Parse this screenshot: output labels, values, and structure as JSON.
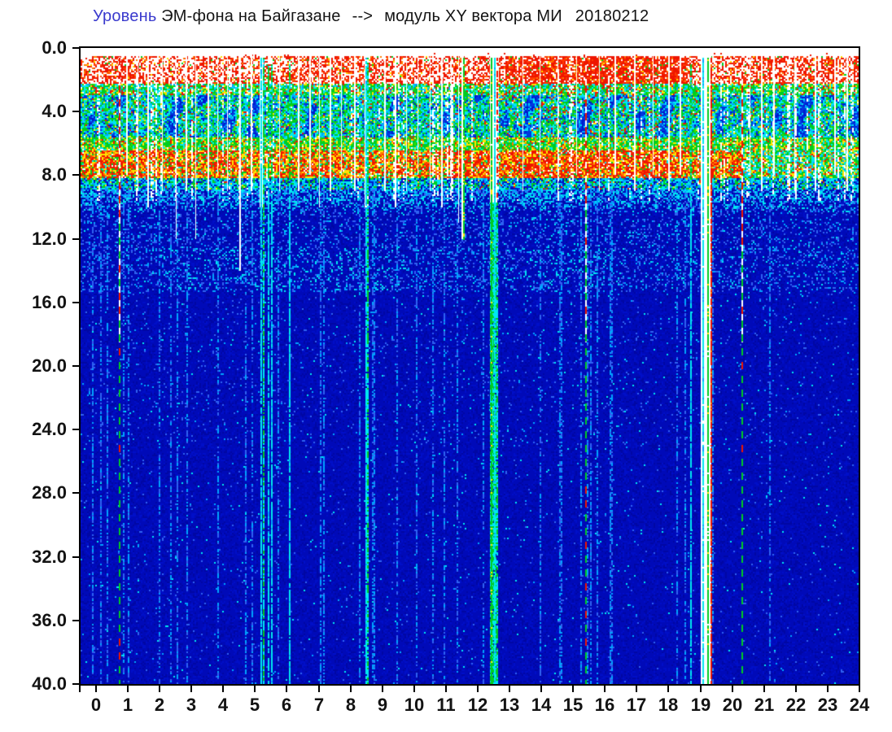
{
  "window": {
    "background": "#ffffff"
  },
  "title": {
    "prefix": "Уровень",
    "prefix_color": "#3a3acd",
    "main": "ЭМ-фона на Байгазане",
    "arrow": "--&gt;",
    "arrow_text": "-->",
    "module": "модуль XY вектора МИ",
    "date": "20180212",
    "color": "#141414"
  },
  "chart_data": {
    "type": "heatmap",
    "subtype": "spectrogram",
    "title": "Уровень ЭМ-фона на Байгазане --> модуль XY вектора МИ 20180212",
    "xlabel": "",
    "ylabel": "",
    "x_range": [
      0,
      24
    ],
    "y_range": [
      0,
      40
    ],
    "y_axis_inverted": true,
    "grid": false,
    "legend": false,
    "x_ticks": [
      "0",
      "1",
      "2",
      "3",
      "4",
      "5",
      "6",
      "7",
      "8",
      "9",
      "10",
      "11",
      "12",
      "13",
      "14",
      "15",
      "16",
      "17",
      "18",
      "19",
      "20",
      "21",
      "22",
      "23",
      "24"
    ],
    "y_ticks": [
      "0.0",
      "4.0",
      "8.0",
      "12.0",
      "16.0",
      "20.0",
      "24.0",
      "28.0",
      "32.0",
      "36.0",
      "40.0"
    ],
    "seed": 20180212,
    "day_interval": [
      12.85,
      18.6
    ],
    "palette": {
      "white": "#ffffff",
      "red": "#ee1500",
      "red2": "#ff3a00",
      "orange": "#ff7e00",
      "yellow": "#ffe400",
      "green": "#00cc22",
      "green2": "#35e000",
      "cyan": "#00e8f0",
      "skyblue": "#00a4ff",
      "ltblue": "#2f62f2",
      "midblue": "#0038e0",
      "blue": "#0018cc",
      "deepblue": "#000ab8",
      "deep2": "#0007a4",
      "deep3": "#000fc8"
    },
    "bands": [
      {
        "id": "blank_top",
        "f": [
          0,
          0.55
        ]
      },
      {
        "id": "red_speckle",
        "f": [
          0.55,
          2.25
        ],
        "density_base": 0.55,
        "density_day": 0.85,
        "density_dawn": 0.45,
        "density_late": 0.6,
        "w": [
          [
            "red",
            0.62
          ],
          [
            "red2",
            0.22
          ],
          [
            "orange",
            0.09
          ],
          [
            "yellow",
            0.04
          ],
          [
            "green",
            0.03
          ]
        ]
      },
      {
        "id": "transition_upper",
        "f": [
          2.25,
          3.0
        ],
        "w": [
          [
            "green",
            0.34
          ],
          [
            "cyan",
            0.22
          ],
          [
            "green2",
            0.08
          ],
          [
            "yellow",
            0.12
          ],
          [
            "red",
            0.09
          ],
          [
            "skyblue",
            0.08
          ],
          [
            "white",
            0.07
          ]
        ]
      },
      {
        "id": "mid_green_cyan",
        "f": [
          3.0,
          5.6
        ],
        "w": [
          [
            "cyan",
            0.32
          ],
          [
            "green",
            0.26
          ],
          [
            "green2",
            0.06
          ],
          [
            "skyblue",
            0.12
          ],
          [
            "midblue",
            0.09
          ],
          [
            "blue",
            0.06
          ],
          [
            "yellow",
            0.04
          ],
          [
            "red",
            0.03
          ],
          [
            "white",
            0.02
          ]
        ],
        "patch_w": [
          [
            "midblue",
            0.38
          ],
          [
            "blue",
            0.28
          ],
          [
            "skyblue",
            0.2
          ],
          [
            "cyan",
            0.14
          ]
        ]
      },
      {
        "id": "green_band",
        "f": [
          5.6,
          6.45
        ],
        "w": [
          [
            "green",
            0.4
          ],
          [
            "green2",
            0.1
          ],
          [
            "cyan",
            0.16
          ],
          [
            "yellow",
            0.18
          ],
          [
            "red",
            0.09
          ],
          [
            "orange",
            0.04
          ],
          [
            "white",
            0.03
          ]
        ]
      },
      {
        "id": "yellow_red_band",
        "f": [
          6.45,
          8.15
        ],
        "w": [
          [
            "red",
            0.34
          ],
          [
            "red2",
            0.08
          ],
          [
            "yellow",
            0.24
          ],
          [
            "orange",
            0.12
          ],
          [
            "green",
            0.13
          ],
          [
            "cyan",
            0.05
          ],
          [
            "white",
            0.04
          ]
        ],
        "w_day": [
          [
            "red",
            0.44
          ],
          [
            "red2",
            0.12
          ],
          [
            "yellow",
            0.19
          ],
          [
            "orange",
            0.1
          ],
          [
            "white",
            0.06
          ],
          [
            "green",
            0.06
          ],
          [
            "cyan",
            0.03
          ]
        ],
        "w_weak": [
          [
            "cyan",
            0.28
          ],
          [
            "green",
            0.24
          ],
          [
            "green2",
            0.06
          ],
          [
            "yellow",
            0.17
          ],
          [
            "red",
            0.11
          ],
          [
            "skyblue",
            0.07
          ],
          [
            "orange",
            0.03
          ],
          [
            "white",
            0.04
          ]
        ]
      },
      {
        "id": "transition_lower",
        "f": [
          8.15,
          8.9
        ],
        "w": [
          [
            "cyan",
            0.3
          ],
          [
            "green",
            0.18
          ],
          [
            "skyblue",
            0.17
          ],
          [
            "blue",
            0.14
          ],
          [
            "deepblue",
            0.13
          ],
          [
            "midblue",
            0.04
          ],
          [
            "yellow",
            0.02
          ],
          [
            "red",
            0.02
          ]
        ]
      },
      {
        "id": "cyan_fade",
        "f": [
          8.9,
          10.3
        ]
      },
      {
        "id": "blue_specks",
        "f": [
          10.3,
          12.6
        ],
        "p_sky": 0.05,
        "p_cyan": 0.015,
        "p_lt": 0.1
      },
      {
        "id": "faint_cyan_band",
        "f": [
          12.6,
          15.3
        ],
        "p_cyan_active": 0.05,
        "p_cyan_idle": 0.015,
        "active_t": [
          [
            2,
            9.7
          ],
          [
            12.8,
            16.6
          ]
        ],
        "p_sky": 0.07,
        "p_lt": 0.1
      },
      {
        "id": "deep_blue",
        "f": [
          15.3,
          40
        ],
        "p_sky_upper": 0.03,
        "p_sky_lower": 0.012,
        "p_cyan": 0.004
      }
    ],
    "minor_gaps": [
      [
        0.95,
        8
      ],
      [
        1.3,
        9
      ],
      [
        1.62,
        10
      ],
      [
        2.08,
        9
      ],
      [
        2.5,
        12
      ],
      [
        2.82,
        9
      ],
      [
        3.12,
        12
      ],
      [
        3.5,
        9
      ],
      [
        3.82,
        8
      ],
      [
        4.12,
        9
      ],
      [
        4.5,
        14
      ],
      [
        4.85,
        9
      ],
      [
        5.75,
        9
      ],
      [
        6.35,
        9
      ],
      [
        6.7,
        8
      ],
      [
        7.0,
        10
      ],
      [
        7.35,
        9
      ],
      [
        7.7,
        8
      ],
      [
        8.1,
        9
      ],
      [
        9.05,
        9
      ],
      [
        9.4,
        10
      ],
      [
        9.75,
        9
      ],
      [
        10.1,
        8
      ],
      [
        10.5,
        9
      ],
      [
        10.85,
        10
      ],
      [
        11.15,
        9
      ],
      [
        11.38,
        11
      ],
      [
        13.4,
        9
      ],
      [
        13.95,
        8
      ],
      [
        14.5,
        9
      ],
      [
        15.1,
        8
      ],
      [
        15.8,
        9
      ],
      [
        16.3,
        8
      ],
      [
        16.9,
        9
      ],
      [
        17.5,
        8
      ],
      [
        18.0,
        9
      ],
      [
        18.35,
        8
      ],
      [
        20.55,
        8
      ],
      [
        20.9,
        9
      ],
      [
        21.3,
        8
      ],
      [
        21.95,
        9
      ],
      [
        22.6,
        9
      ],
      [
        23.2,
        8
      ],
      [
        23.6,
        9
      ]
    ],
    "features": [
      {
        "type": "gap",
        "t0": 5.14,
        "t1": 5.27,
        "f1": 10,
        "lines": [
          {
            "t": 5.18,
            "color": "cyan"
          },
          {
            "t": 5.24,
            "color": "greencyan"
          }
        ]
      },
      {
        "type": "streak",
        "t": 5.4
      },
      {
        "type": "streak",
        "t": 5.5
      },
      {
        "type": "streak",
        "t": 6.06
      },
      {
        "type": "gap",
        "t0": 8.44,
        "t1": 8.57,
        "f1": 10,
        "lines": [
          {
            "t": 8.47,
            "color": "cyan"
          },
          {
            "t": 8.53,
            "color": "greencyan"
          }
        ]
      },
      {
        "type": "gap",
        "t0": 11.5,
        "t1": 11.56,
        "f1": 12,
        "lines": [
          {
            "t": 11.53,
            "color": "green",
            "f1": 12
          }
        ]
      },
      {
        "type": "gap",
        "t0": 12.38,
        "t1": 12.62,
        "f1": 9.7,
        "fill_below": "greencyan",
        "lines": [
          {
            "t": 12.41,
            "color": "green"
          },
          {
            "t": 12.52,
            "color": "cyan"
          },
          {
            "t": 12.59,
            "color": "redspeck",
            "f1": 9.7
          }
        ]
      },
      {
        "type": "streak",
        "t": 18.68
      },
      {
        "type": "gap",
        "t0": 19.0,
        "t1": 19.35,
        "f1": 40,
        "lines": [
          {
            "t": 19.05,
            "color": "cyan"
          },
          {
            "t": 19.22,
            "color": "green"
          },
          {
            "t": 19.31,
            "color": "red"
          }
        ]
      },
      {
        "type": "dashed",
        "t": 0.72
      },
      {
        "type": "dashed",
        "t": 15.37
      },
      {
        "type": "dashed",
        "t": 20.28
      }
    ]
  }
}
